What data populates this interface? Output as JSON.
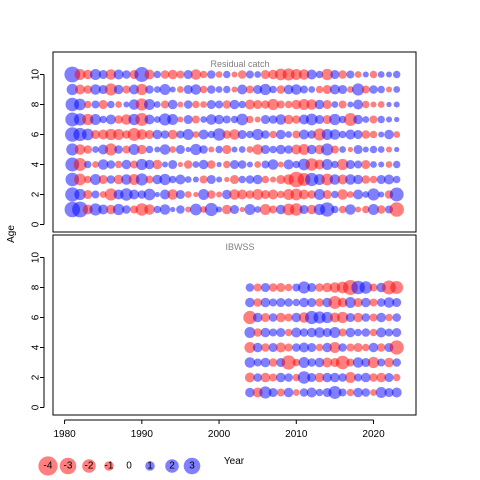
{
  "chart_data": {
    "type": "scatter",
    "subtype": "bubble",
    "xlabel": "Year",
    "ylabel": "Age",
    "xlim": [
      1978.5,
      2025.5
    ],
    "ylim": [
      -0.5,
      11.5
    ],
    "x_ticks": [
      1980,
      1990,
      2000,
      2010,
      2020
    ],
    "y_ticks": [
      0,
      2,
      4,
      6,
      8,
      10
    ],
    "colors": {
      "positive": "#0000FF",
      "negative": "#FF0000",
      "opacity": 0.5
    },
    "legend": {
      "position": "bottom-left",
      "entries": [
        {
          "label": "-4",
          "value": -4
        },
        {
          "label": "-3",
          "value": -3
        },
        {
          "label": "-2",
          "value": -2
        },
        {
          "label": "-1",
          "value": -1
        },
        {
          "label": "0",
          "value": 0
        },
        {
          "label": "1",
          "value": 1
        },
        {
          "label": "2",
          "value": 2
        },
        {
          "label": "3",
          "value": 3
        }
      ]
    },
    "panels": [
      {
        "title": "Residual catch",
        "years": [
          1981,
          1982,
          1983,
          1984,
          1985,
          1986,
          1987,
          1988,
          1989,
          1990,
          1991,
          1992,
          1993,
          1994,
          1995,
          1996,
          1997,
          1998,
          1999,
          2000,
          2001,
          2002,
          2003,
          2004,
          2005,
          2006,
          2007,
          2008,
          2009,
          2010,
          2011,
          2012,
          2013,
          2014,
          2015,
          2016,
          2017,
          2018,
          2019,
          2020,
          2021,
          2022,
          2023
        ],
        "ages": [
          1,
          2,
          3,
          4,
          5,
          6,
          7,
          8,
          9,
          10
        ],
        "residuals_by_age": {
          "1": [
            2.6,
            2.7,
            -1.1,
            1.6,
            1.1,
            -1.0,
            1.4,
            0.8,
            -0.7,
            -1.7,
            -1.2,
            0.6,
            1.2,
            0.3,
            0.8,
            -0.4,
            1.5,
            -0.5,
            1.9,
            0.4,
            -1.0,
            0.9,
            -0.3,
            1.3,
            0.5,
            -1.3,
            -0.7,
            1.0,
            -1.5,
            -1.7,
            0.9,
            -1.0,
            1.4,
            2.2,
            0.6,
            -0.6,
            1.2,
            -0.4,
            -0.6,
            1.3,
            -0.8,
            0.7,
            -2.3
          ],
          "2": [
            2.2,
            1.4,
            -0.9,
            0.7,
            -0.5,
            -1.6,
            1.1,
            1.7,
            1.1,
            0.8,
            1.5,
            0.3,
            1.1,
            -1.2,
            0.9,
            -0.5,
            -0.3,
            1.3,
            -0.8,
            -0.4,
            1.0,
            -1.2,
            -1.1,
            -0.8,
            -1.3,
            -0.9,
            -1.1,
            -0.6,
            -1.3,
            -1.5,
            -1.1,
            -0.8,
            1.3,
            -0.9,
            0.6,
            -1.2,
            -0.5,
            1.1,
            0.5,
            1.6,
            0.4,
            -0.8,
            2.1
          ],
          "3": [
            2.0,
            -1.5,
            -0.6,
            1.3,
            -0.9,
            0.8,
            -1.0,
            1.2,
            -1.3,
            1.6,
            -0.7,
            1.0,
            1.4,
            0.6,
            1.1,
            0.5,
            0.4,
            -0.7,
            0.9,
            0.4,
            -0.3,
            -0.9,
            0.6,
            0.8,
            1.0,
            -0.6,
            -0.4,
            -0.9,
            -1.2,
            -2.6,
            -1.8,
            1.9,
            1.3,
            -1.5,
            1.2,
            -1.1,
            1.2,
            1.0,
            -0.8,
            -0.6,
            0.9,
            1.1,
            0.6
          ],
          "4": [
            2.1,
            -1.8,
            0.6,
            -0.5,
            1.2,
            0.8,
            -0.6,
            1.0,
            -0.7,
            1.4,
            1.0,
            -1.0,
            0.4,
            0.9,
            -0.3,
            -0.8,
            0.5,
            1.0,
            -0.8,
            0.3,
            -0.6,
            0.9,
            0.8,
            0.4,
            -0.5,
            0.7,
            1.2,
            -0.4,
            1.1,
            0.6,
            1.5,
            -1.7,
            -1.1,
            1.3,
            0.6,
            -1.4,
            0.9,
            0.7,
            -0.9,
            0.5,
            0.4,
            -0.5,
            0.6
          ],
          "5": [
            1.6,
            -1.2,
            -0.8,
            0.5,
            1.1,
            -1.6,
            0.8,
            -0.7,
            1.3,
            -1.0,
            0.6,
            0.4,
            1.2,
            -0.5,
            0.9,
            0.3,
            1.4,
            0.8,
            -0.4,
            0.6,
            -0.9,
            0.4,
            0.5,
            -0.5,
            -1.2,
            0.9,
            0.6,
            1.0,
            0.8,
            -1.1,
            -1.3,
            1.0,
            -1.0,
            1.6,
            -0.7,
            0.5,
            -0.3,
            0.9,
            0.4,
            0.6,
            0.5,
            -0.4,
            0.3
          ],
          "6": [
            2.3,
            1.9,
            1.5,
            -0.9,
            -1.1,
            -1.4,
            -1.3,
            -0.8,
            -1.8,
            -1.2,
            -0.9,
            1.0,
            0.8,
            -1.0,
            0.7,
            1.3,
            -0.5,
            1.1,
            0.6,
            1.7,
            -0.8,
            -1.2,
            0.9,
            0.6,
            1.4,
            0.8,
            -0.6,
            1.0,
            0.5,
            -0.7,
            1.1,
            0.8,
            -1.6,
            1.3,
            1.2,
            0.6,
            1.1,
            0.9,
            -0.8,
            -0.6,
            0.4,
            1.0,
            -0.5
          ],
          "7": [
            2.1,
            1.6,
            -1.4,
            1.3,
            0.6,
            1.1,
            -0.8,
            -1.2,
            1.4,
            -1.8,
            1.1,
            0.5,
            1.6,
            1.3,
            -0.4,
            0.9,
            -0.7,
            0.5,
            1.2,
            1.0,
            0.7,
            0.6,
            1.5,
            -0.6,
            -0.4,
            0.9,
            0.8,
            1.2,
            -1.0,
            -0.8,
            1.1,
            1.5,
            0.9,
            -0.9,
            1.4,
            0.6,
            -1.8,
            1.0,
            0.5,
            -0.7,
            0.6,
            0.4,
            0.3
          ],
          "8": [
            2.0,
            1.5,
            -0.6,
            0.7,
            -0.9,
            0.6,
            -0.5,
            0.4,
            1.2,
            -1.6,
            1.3,
            0.5,
            -0.7,
            1.0,
            -0.4,
            0.8,
            -0.6,
            -0.5,
            0.9,
            0.7,
            -0.8,
            1.0,
            0.6,
            -1.1,
            -0.9,
            -0.8,
            -1.4,
            -0.7,
            -0.6,
            -1.0,
            -1.3,
            -1.2,
            1.0,
            -0.9,
            0.5,
            -0.7,
            0.4,
            1.1,
            -0.6,
            -0.4,
            -0.5,
            0.3,
            0.4
          ],
          "9": [
            1.4,
            -1.1,
            -0.8,
            1.2,
            0.9,
            -1.6,
            1.0,
            -0.7,
            1.1,
            -1.4,
            0.8,
            0.5,
            1.3,
            0.4,
            -0.5,
            0.9,
            1.2,
            -0.6,
            0.8,
            0.5,
            0.6,
            -0.4,
            1.1,
            -0.7,
            0.9,
            1.4,
            0.6,
            -0.8,
            1.0,
            1.2,
            0.7,
            0.5,
            -0.6,
            -0.9,
            1.1,
            0.9,
            -0.5,
            1.6,
            -0.7,
            0.8,
            0.6,
            -0.4,
            0.5
          ],
          "10": [
            2.7,
            -1.3,
            -1.0,
            1.3,
            0.9,
            -1.2,
            1.1,
            0.8,
            -0.9,
            2.4,
            -1.1,
            0.6,
            -0.8,
            -1.0,
            -0.7,
            0.9,
            -1.2,
            -0.6,
            0.8,
            -0.5,
            0.6,
            -0.4,
            -0.8,
            0.7,
            0.5,
            -0.9,
            -1.0,
            -1.5,
            -1.6,
            -1.3,
            -1.2,
            1.1,
            0.6,
            -1.4,
            0.9,
            -0.8,
            0.7,
            -0.5,
            0.4,
            -0.6,
            0.5,
            0.4,
            0.6
          ]
        }
      },
      {
        "title": "IBWSS",
        "years": [
          2004,
          2005,
          2006,
          2007,
          2008,
          2009,
          2010,
          2011,
          2012,
          2013,
          2014,
          2015,
          2016,
          2017,
          2018,
          2019,
          2020,
          2021,
          2022,
          2023
        ],
        "ages": [
          1,
          2,
          3,
          4,
          5,
          6,
          7,
          8
        ],
        "residuals_by_age": {
          "1": [
            1.0,
            -1.1,
            1.6,
            0.9,
            -0.7,
            1.0,
            -0.5,
            0.8,
            1.1,
            0.6,
            0.9,
            1.8,
            0.7,
            -0.6,
            1.0,
            0.8,
            -0.5,
            1.3,
            0.9,
            1.1
          ],
          "2": [
            -1.1,
            0.8,
            -1.0,
            -0.7,
            1.0,
            0.8,
            -0.6,
            1.7,
            0.9,
            -1.0,
            1.0,
            1.0,
            0.8,
            -1.3,
            0.7,
            1.0,
            -0.8,
            -1.0,
            0.9,
            -0.6
          ],
          "3": [
            1.2,
            0.7,
            1.0,
            -0.8,
            0.9,
            -2.2,
            -0.6,
            1.3,
            0.8,
            1.0,
            -1.1,
            -0.9,
            -2.0,
            -0.7,
            1.2,
            0.9,
            -1.4,
            0.7,
            -1.0,
            0.8
          ],
          "4": [
            -1.3,
            1.0,
            -0.8,
            0.9,
            -1.1,
            -0.7,
            0.8,
            1.1,
            0.9,
            -0.6,
            1.0,
            -1.3,
            0.8,
            -0.7,
            -0.9,
            -0.6,
            1.0,
            -0.8,
            0.9,
            -2.2
          ],
          "5": [
            1.3,
            -0.8,
            1.0,
            0.7,
            0.9,
            -0.6,
            1.1,
            0.8,
            1.0,
            1.2,
            0.9,
            1.3,
            -0.7,
            1.0,
            0.6,
            0.8,
            -0.6,
            1.1,
            0.7,
            0.9
          ],
          "6": [
            -1.9,
            1.0,
            -0.9,
            0.8,
            -1.0,
            -0.7,
            1.0,
            -1.2,
            1.9,
            1.6,
            1.4,
            -1.1,
            -1.4,
            0.9,
            -1.0,
            0.8,
            -0.7,
            1.0,
            -0.6,
            0.8
          ],
          "7": [
            1.0,
            -0.8,
            1.0,
            0.7,
            0.9,
            0.8,
            0.6,
            1.0,
            0.9,
            -0.8,
            1.0,
            -1.8,
            -1.0,
            1.3,
            -0.9,
            1.0,
            -0.7,
            0.8,
            1.2,
            0.9
          ],
          "8": [
            0.8,
            -0.7,
            0.9,
            -0.8,
            -0.9,
            -0.6,
            0.7,
            1.6,
            0.9,
            -0.8,
            -1.0,
            -1.2,
            -1.5,
            -2.4,
            2.0,
            1.7,
            -0.7,
            1.0,
            -2.1,
            -1.8
          ]
        }
      }
    ]
  }
}
